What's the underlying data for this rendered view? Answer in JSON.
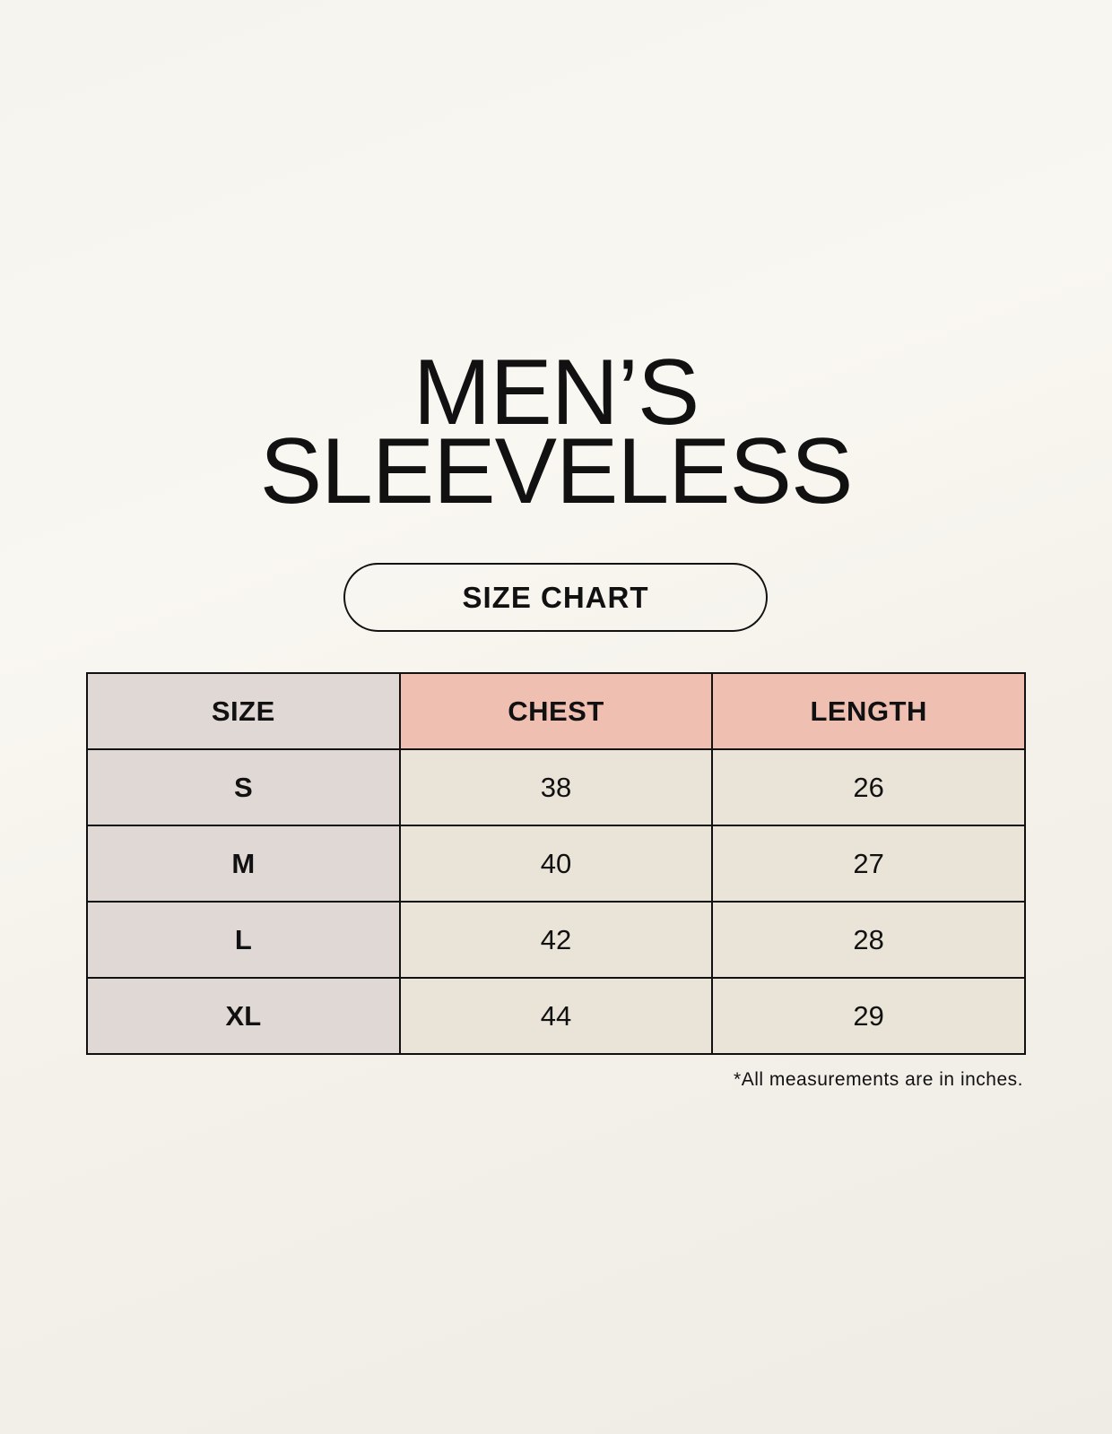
{
  "title": {
    "line1": "MEN’S",
    "line2": "SLEEVELESS"
  },
  "subtitle": "SIZE CHART",
  "table": {
    "headers": [
      "SIZE",
      "CHEST",
      "LENGTH"
    ],
    "rows": [
      [
        "S",
        "38",
        "26"
      ],
      [
        "M",
        "40",
        "27"
      ],
      [
        "L",
        "42",
        "28"
      ],
      [
        "XL",
        "44",
        "29"
      ]
    ]
  },
  "footnote": "*All measurements are in inches.",
  "colors": {
    "size_column": "#e0d8d4",
    "header_accent": "#efbfb1",
    "cell": "#eae4d8",
    "background": "#f7f5ef"
  }
}
